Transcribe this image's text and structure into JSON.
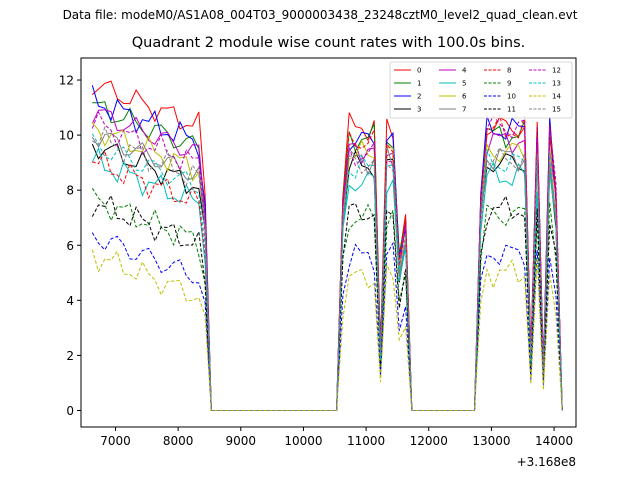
{
  "figure": {
    "suptitle": "Data file: modeM0/AS1A08_004T03_9000003438_23248cztM0_level2_quad_clean.evt"
  },
  "chart_data": {
    "type": "line",
    "title": "Quadrant 2 module wise count rates with 100.0s bins.",
    "xlabel": "",
    "ylabel": "",
    "x_offset_label": "+3.168e8",
    "x_offset": 316800000,
    "xlim": [
      6450,
      14350
    ],
    "ylim": [
      -0.6,
      12.8
    ],
    "xticks": [
      7000,
      8000,
      9000,
      10000,
      11000,
      12000,
      13000,
      14000
    ],
    "yticks": [
      0,
      2,
      4,
      6,
      8,
      10,
      12
    ],
    "grid": false,
    "legend": {
      "placement": "top-right",
      "columns": 4,
      "entries": [
        "0",
        "1",
        "2",
        "3",
        "4",
        "5",
        "6",
        "7",
        "8",
        "9",
        "10",
        "11",
        "12",
        "13",
        "14",
        "15"
      ]
    },
    "active_intervals": [
      [
        6630,
        8530
      ],
      [
        10530,
        11720
      ],
      [
        12730,
        14130
      ]
    ],
    "series": [
      {
        "name": "0",
        "color": "#ff0000",
        "dash": "solid",
        "levels": [
          11.8,
          10.3,
          10.3
        ]
      },
      {
        "name": "1",
        "color": "#008000",
        "dash": "solid",
        "levels": [
          11.0,
          9.9,
          10.0
        ]
      },
      {
        "name": "2",
        "color": "#0000ff",
        "dash": "solid",
        "levels": [
          11.2,
          9.8,
          10.2
        ]
      },
      {
        "name": "3",
        "color": "#000000",
        "dash": "solid",
        "levels": [
          9.6,
          8.9,
          9.0
        ]
      },
      {
        "name": "4",
        "color": "#bf00bf",
        "dash": "solid",
        "levels": [
          10.8,
          9.5,
          9.8
        ]
      },
      {
        "name": "5",
        "color": "#00bfbf",
        "dash": "solid",
        "levels": [
          9.0,
          8.3,
          8.5
        ]
      },
      {
        "name": "6",
        "color": "#bfbf00",
        "dash": "solid",
        "levels": [
          10.2,
          9.3,
          9.4
        ]
      },
      {
        "name": "7",
        "color": "#808080",
        "dash": "solid",
        "levels": [
          10.0,
          9.1,
          9.2
        ]
      },
      {
        "name": "8",
        "color": "#ff0000",
        "dash": "dashed",
        "levels": [
          9.0,
          9.8,
          10.2
        ]
      },
      {
        "name": "9",
        "color": "#008000",
        "dash": "dashed",
        "levels": [
          7.6,
          7.0,
          7.1
        ]
      },
      {
        "name": "10",
        "color": "#0000ff",
        "dash": "dashed",
        "levels": [
          6.3,
          5.6,
          5.7
        ]
      },
      {
        "name": "11",
        "color": "#000000",
        "dash": "dashed",
        "levels": [
          7.5,
          7.2,
          7.3
        ]
      },
      {
        "name": "12",
        "color": "#bf00bf",
        "dash": "dashed",
        "levels": [
          10.4,
          9.3,
          10.3
        ]
      },
      {
        "name": "13",
        "color": "#00bfbf",
        "dash": "dashed",
        "levels": [
          9.6,
          8.8,
          9.0
        ]
      },
      {
        "name": "14",
        "color": "#bfbf00",
        "dash": "dashed",
        "levels": [
          5.6,
          4.8,
          5.0
        ]
      },
      {
        "name": "15",
        "color": "#808080",
        "dash": "dashed",
        "levels": [
          9.9,
          9.0,
          9.1
        ]
      }
    ]
  }
}
